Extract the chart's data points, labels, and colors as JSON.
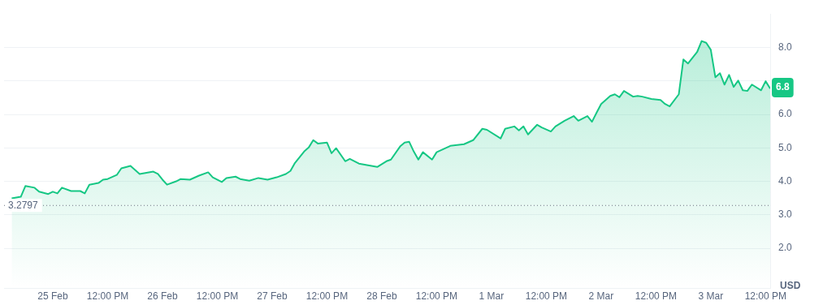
{
  "chart_data": {
    "type": "area",
    "ylabel": "USD",
    "xlim": [
      "--02-24T13:20",
      "--03-03T13:00"
    ],
    "ylim": [
      0.8,
      9.0
    ],
    "xticks": [
      {
        "value": "--02-25T00:00",
        "label": "25 Feb"
      },
      {
        "value": "--02-25T12:00",
        "label": "12:00 PM"
      },
      {
        "value": "--02-26T00:00",
        "label": "26 Feb"
      },
      {
        "value": "--02-26T12:00",
        "label": "12:00 PM"
      },
      {
        "value": "--02-27T00:00",
        "label": "27 Feb"
      },
      {
        "value": "--02-27T12:00",
        "label": "12:00 PM"
      },
      {
        "value": "--02-28T00:00",
        "label": "28 Feb"
      },
      {
        "value": "--02-28T12:00",
        "label": "12:00 PM"
      },
      {
        "value": "--03-01T00:00",
        "label": "1 Mar"
      },
      {
        "value": "--03-01T12:00",
        "label": "12:00 PM"
      },
      {
        "value": "--03-02T00:00",
        "label": "2 Mar"
      },
      {
        "value": "--03-02T12:00",
        "label": "12:00 PM"
      },
      {
        "value": "--03-03T00:00",
        "label": "3 Mar"
      },
      {
        "value": "--03-03T12:00",
        "label": "12:00 PM"
      }
    ],
    "yticks": [
      {
        "value": 2,
        "label": "2.0"
      },
      {
        "value": 3,
        "label": "3.0"
      },
      {
        "value": 4,
        "label": "4.0"
      },
      {
        "value": 5,
        "label": "5.0"
      },
      {
        "value": 6,
        "label": "6.0"
      },
      {
        "value": 7,
        "label": null
      },
      {
        "value": 8,
        "label": "8.0"
      }
    ],
    "grid": "y",
    "marker": "none",
    "line_style": "solid",
    "ref_lines": [
      {
        "axis": "y",
        "value": 3.2797,
        "label": "3.2797",
        "color": "#6b7280",
        "line_style": "dotted"
      }
    ],
    "annotations": [
      {
        "text": "6.8",
        "y": 6.8
      }
    ],
    "series": [
      {
        "color": "#16c784",
        "x": [
          "--02-24T15:00",
          "--02-24T17:00",
          "--02-24T18:00",
          "--02-24T20:00",
          "--02-24T21:00",
          "--02-24T23:00",
          "--02-25T00:00",
          "--02-25T01:00",
          "--02-25T02:00",
          "--02-25T04:00",
          "--02-25T06:00",
          "--02-25T07:00",
          "--02-25T08:00",
          "--02-25T10:00",
          "--02-25T11:00",
          "--02-25T12:00",
          "--02-25T14:00",
          "--02-25T15:00",
          "--02-25T17:00",
          "--02-25T18:00",
          "--02-25T19:00",
          "--02-25T22:00",
          "--02-25T23:00",
          "--02-26T00:00",
          "--02-26T01:00",
          "--02-26T03:00",
          "--02-26T04:00",
          "--02-26T06:00",
          "--02-26T08:00",
          "--02-26T10:00",
          "--02-26T11:00",
          "--02-26T13:00",
          "--02-26T14:00",
          "--02-26T16:00",
          "--02-26T17:00",
          "--02-26T19:00",
          "--02-26T21:00",
          "--02-26T23:00",
          "--02-27T01:00",
          "--02-27T03:00",
          "--02-27T04:00",
          "--02-27T05:00",
          "--02-27T07:00",
          "--02-27T08:00",
          "--02-27T09:00",
          "--02-27T10:00",
          "--02-27T12:00",
          "--02-27T13:00",
          "--02-27T14:00",
          "--02-27T16:00",
          "--02-27T17:00",
          "--02-27T19:00",
          "--02-27T21:00",
          "--02-27T23:00",
          "--02-28T01:00",
          "--02-28T02:00",
          "--02-28T04:00",
          "--02-28T05:00",
          "--02-28T06:00",
          "--02-28T07:00",
          "--02-28T08:00",
          "--02-28T09:00",
          "--02-28T11:00",
          "--02-28T12:00",
          "--02-28T15:00",
          "--02-28T18:00",
          "--02-28T20:00",
          "--02-28T22:00",
          "--02-28T23:00",
          "--03-01T02:00",
          "--03-01T03:00",
          "--03-01T05:00",
          "--03-01T06:00",
          "--03-01T07:00",
          "--03-01T08:00",
          "--03-01T10:00",
          "--03-01T11:00",
          "--03-01T13:00",
          "--03-01T14:00",
          "--03-01T16:00",
          "--03-01T18:00",
          "--03-01T19:00",
          "--03-01T21:00",
          "--03-01T22:00",
          "--03-01T23:00",
          "--03-02T00:00",
          "--03-02T02:00",
          "--03-02T03:00",
          "--03-02T04:00",
          "--03-02T05:00",
          "--03-02T07:00",
          "--03-02T08:00",
          "--03-02T09:00",
          "--03-02T11:00",
          "--03-02T13:00",
          "--03-02T14:00",
          "--03-02T15:00",
          "--03-02T17:00",
          "--03-02T18:00",
          "--03-02T19:00",
          "--03-02T21:00",
          "--03-02T22:00",
          "--03-02T23:00",
          "--03-03T00:00",
          "--03-03T01:00",
          "--03-03T02:00",
          "--03-03T03:00",
          "--03-03T04:00",
          "--03-03T05:00",
          "--03-03T06:00",
          "--03-03T07:00",
          "--03-03T08:00",
          "--03-03T09:00",
          "--03-03T11:00",
          "--03-03T12:00",
          "--03-03T13:00"
        ],
        "values": [
          3.49,
          3.54,
          3.86,
          3.81,
          3.69,
          3.62,
          3.69,
          3.64,
          3.81,
          3.71,
          3.71,
          3.64,
          3.9,
          3.95,
          4.05,
          4.07,
          4.19,
          4.39,
          4.46,
          4.34,
          4.22,
          4.29,
          4.22,
          4.05,
          3.9,
          4.0,
          4.07,
          4.05,
          4.17,
          4.27,
          4.12,
          3.98,
          4.1,
          4.14,
          4.07,
          4.02,
          4.1,
          4.05,
          4.12,
          4.22,
          4.31,
          4.55,
          4.89,
          5.01,
          5.23,
          5.13,
          5.16,
          4.84,
          4.99,
          4.6,
          4.67,
          4.53,
          4.48,
          4.43,
          4.6,
          4.65,
          5.04,
          5.16,
          5.18,
          4.89,
          4.65,
          4.87,
          4.65,
          4.87,
          5.06,
          5.11,
          5.23,
          5.57,
          5.54,
          5.28,
          5.57,
          5.64,
          5.52,
          5.64,
          5.4,
          5.69,
          5.61,
          5.49,
          5.64,
          5.81,
          5.95,
          5.81,
          5.95,
          5.78,
          6.05,
          6.31,
          6.55,
          6.6,
          6.51,
          6.7,
          6.53,
          6.55,
          6.53,
          6.46,
          6.43,
          6.31,
          6.24,
          6.6,
          7.64,
          7.52,
          7.86,
          8.19,
          8.14,
          7.93,
          7.11,
          7.23,
          6.89,
          7.18,
          6.82,
          7.01,
          6.72,
          6.7,
          6.89,
          6.72,
          6.99,
          6.77
        ]
      }
    ]
  }
}
